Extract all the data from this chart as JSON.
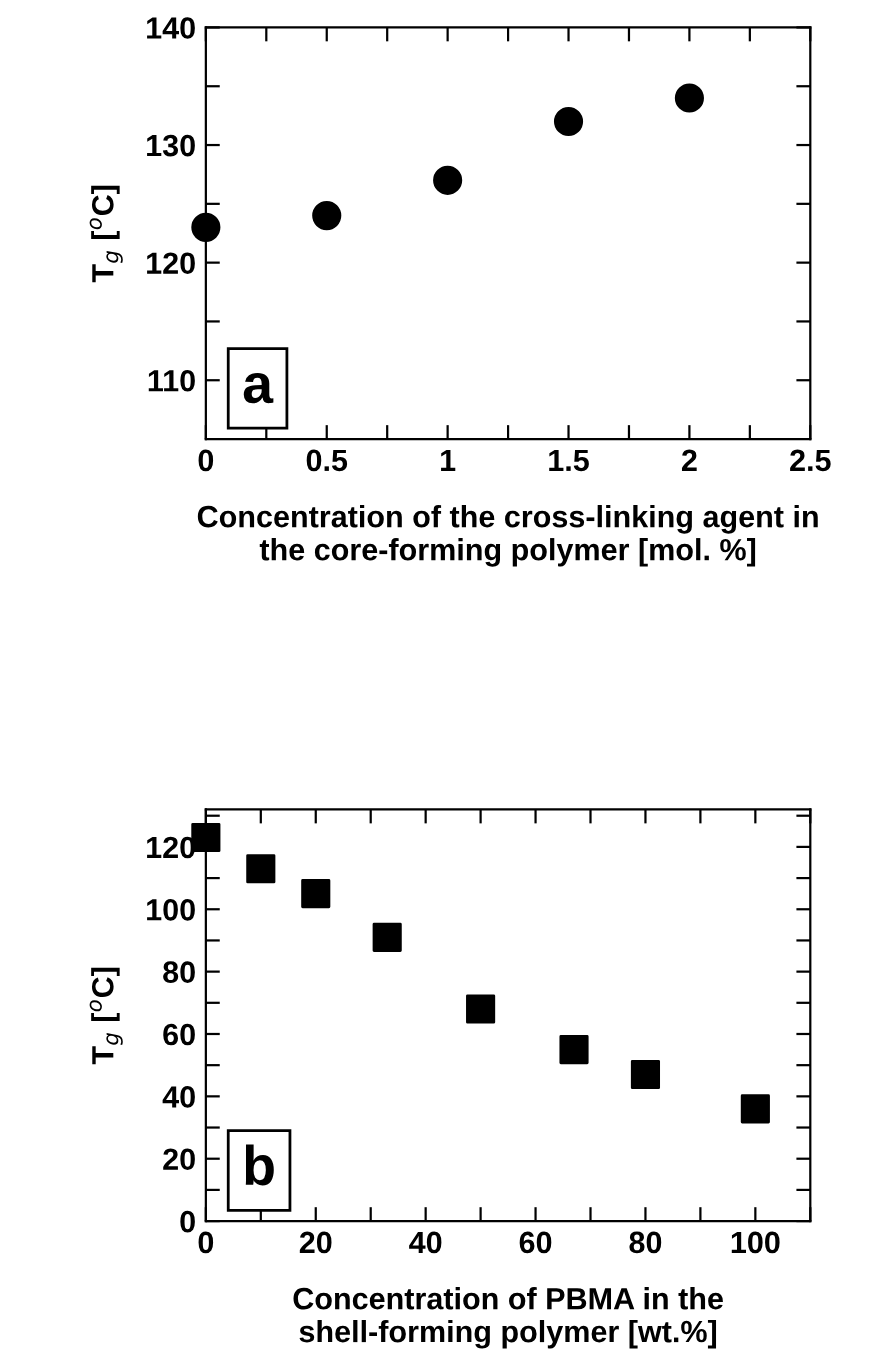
{
  "chart_data": [
    {
      "type": "scatter",
      "xlabel": "Concentration of the cross-linking agent in\nthe core-forming polymer [mol. %]",
      "ylabel": "T$_{g}$ [$^{o}$C]",
      "annotations": [
        "a"
      ],
      "marker": "circle",
      "x": [
        0,
        0.5,
        1,
        1.5,
        2
      ],
      "series": [
        {
          "color": "#000000",
          "values": [
            123,
            124,
            127,
            132,
            134
          ]
        }
      ],
      "xlim": [
        0,
        2.5
      ],
      "xticks": [
        0,
        {
          "value": 0.25,
          "label": null
        },
        0.5,
        {
          "value": 0.75,
          "label": null
        },
        1,
        {
          "value": 1.25,
          "label": null
        },
        1.5,
        {
          "value": 1.75,
          "label": null
        },
        2,
        {
          "value": 2.25,
          "label": null
        },
        2.5
      ],
      "ylim": [
        105,
        140
      ],
      "yticks": [
        110,
        {
          "value": 115,
          "label": null
        },
        120,
        {
          "value": 125,
          "label": null
        },
        130,
        {
          "value": 135,
          "label": null
        },
        140
      ],
      "grid": false,
      "legend": false
    },
    {
      "type": "scatter",
      "xlabel": "Concentration of PBMA in the\nshell-forming polymer [wt.%]",
      "ylabel": "T$_{g}$ [$^{o}$C]",
      "annotations": [
        "b"
      ],
      "marker": "square",
      "x": [
        0,
        10,
        20,
        33,
        50,
        67,
        80,
        100
      ],
      "series": [
        {
          "color": "#000000",
          "values": [
            123,
            113,
            105,
            91,
            68,
            55,
            47,
            36
          ]
        }
      ],
      "xlim": [
        0,
        110
      ],
      "xticks": [
        0,
        {
          "value": 10,
          "label": null
        },
        20,
        {
          "value": 30,
          "label": null
        },
        40,
        {
          "value": 50,
          "label": null
        },
        60,
        {
          "value": 70,
          "label": null
        },
        80,
        {
          "value": 90,
          "label": null
        },
        100,
        {
          "value": 110,
          "label": null
        }
      ],
      "ylim": [
        0,
        132
      ],
      "yticks": [
        0,
        {
          "value": 10,
          "label": null
        },
        20,
        {
          "value": 30,
          "label": null
        },
        40,
        {
          "value": 50,
          "label": null
        },
        60,
        {
          "value": 70,
          "label": null
        },
        80,
        {
          "value": 90,
          "label": null
        },
        100,
        {
          "value": 110,
          "label": null
        },
        120,
        {
          "value": 130,
          "label": null
        }
      ],
      "grid": false,
      "legend": false
    }
  ]
}
